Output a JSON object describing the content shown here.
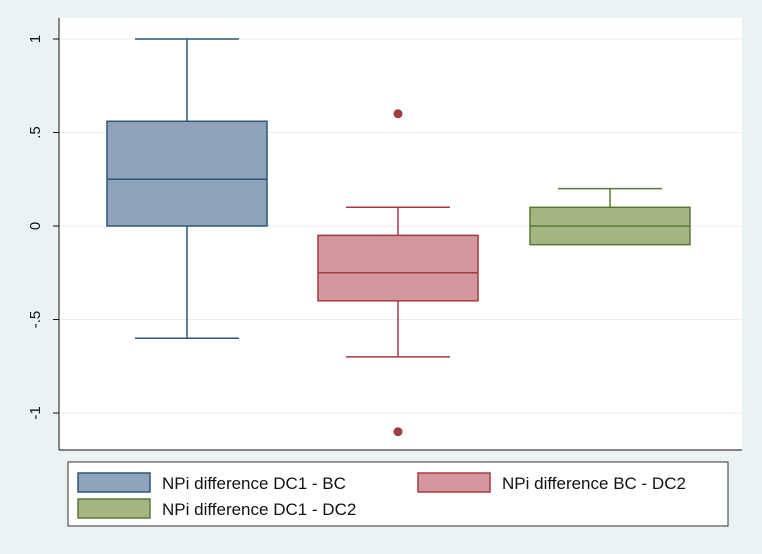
{
  "chart_data": {
    "type": "box",
    "title": "",
    "xlabel": "",
    "ylabel": "",
    "ylim": [
      -1.2,
      1.12
    ],
    "yticks": [
      1,
      0.5,
      0,
      -0.5,
      -1
    ],
    "ytick_labels": [
      "1",
      ".5",
      "0",
      "-.5",
      "-1"
    ],
    "grid": true,
    "legend_position": "bottom",
    "series": [
      {
        "name": "NPi difference DC1 - BC",
        "color": "#8fa4bb",
        "stroke": "#2c5678",
        "whisker_low": -0.6,
        "q1": 0.0,
        "median": 0.25,
        "q3": 0.56,
        "whisker_high": 1.0,
        "outliers": []
      },
      {
        "name": "NPi difference BC - DC2",
        "color": "#d4979e",
        "stroke": "#a33b42",
        "whisker_low": -0.7,
        "q1": -0.4,
        "median": -0.25,
        "q3": -0.05,
        "whisker_high": 0.1,
        "outliers": [
          0.6,
          -1.1
        ]
      },
      {
        "name": "NPi difference DC1 - DC2",
        "color": "#a3b681",
        "stroke": "#5a7a36",
        "whisker_low": -0.1,
        "q1": -0.1,
        "median": 0.0,
        "q3": 0.1,
        "whisker_high": 0.2,
        "outliers": []
      }
    ]
  }
}
